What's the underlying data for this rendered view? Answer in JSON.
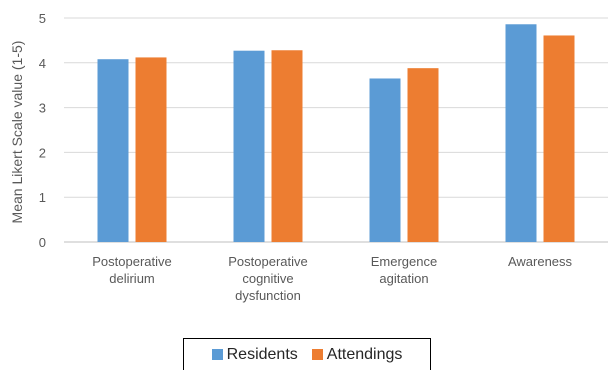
{
  "chart_data": {
    "type": "bar",
    "ylabel": "Mean Likert Scale value (1-5)",
    "ylim": [
      0,
      5
    ],
    "yticks": [
      0,
      1,
      2,
      3,
      4,
      5
    ],
    "grid": true,
    "legend_placement": "bottom",
    "categories": [
      [
        "Postoperative",
        "delirium"
      ],
      [
        "Postoperative",
        "cognitive",
        "dysfunction"
      ],
      [
        "Emergence",
        "agitation"
      ],
      [
        "Awareness"
      ]
    ],
    "series": [
      {
        "name": "Residents",
        "color": "#5B9BD5",
        "values": [
          4.08,
          4.27,
          3.65,
          4.86
        ]
      },
      {
        "name": "Attendings",
        "color": "#ED7D31",
        "values": [
          4.12,
          4.28,
          3.88,
          4.61
        ]
      }
    ]
  }
}
